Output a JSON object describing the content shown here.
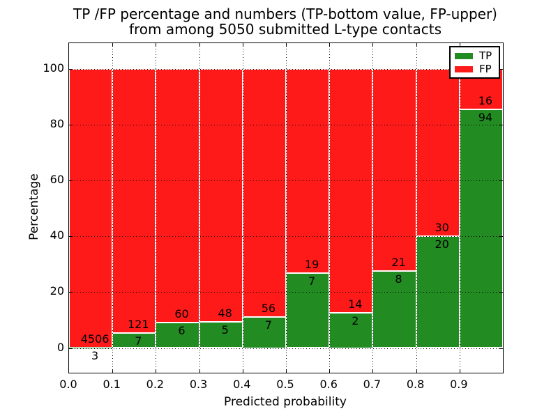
{
  "figure": {
    "title_line1": "TP /FP percentage and numbers (TP-bottom value, FP-upper)",
    "title_line2": "from among 5050 submitted L-type contacts",
    "xlabel": "Predicted probability",
    "ylabel": "Percentage"
  },
  "legend": {
    "entries": [
      {
        "label": "TP",
        "color": "#228b22"
      },
      {
        "label": "FP",
        "color": "#ff1a1a"
      }
    ]
  },
  "chart_data": {
    "type": "bar",
    "subtype": "stacked-100-percent-histogram",
    "title": "TP /FP percentage and numbers (TP-bottom value, FP-upper) from among 5050 submitted L-type contacts",
    "xlabel": "Predicted probability",
    "ylabel": "Percentage",
    "total_submitted": 5050,
    "bin_edges": [
      0.0,
      0.1,
      0.2,
      0.3,
      0.4,
      0.5,
      0.6,
      0.7,
      0.8,
      0.9,
      1.0
    ],
    "x_tick_labels": [
      "0.0",
      "0.1",
      "0.2",
      "0.3",
      "0.4",
      "0.5",
      "0.6",
      "0.7",
      "0.8",
      "0.9"
    ],
    "y_ticks": [
      0,
      20,
      40,
      60,
      80,
      100
    ],
    "xlim": [
      0.0,
      1.0
    ],
    "ylim": [
      -8.9,
      109.2
    ],
    "grid": {
      "style": "dotted",
      "drawn_above_bars": true
    },
    "legend_position": "upper-right",
    "series": [
      {
        "name": "TP",
        "color": "#228b22",
        "counts": [
          3,
          7,
          6,
          5,
          7,
          7,
          2,
          8,
          20,
          94
        ]
      },
      {
        "name": "FP",
        "color": "#ff1a1a",
        "counts": [
          4506,
          121,
          60,
          48,
          56,
          19,
          14,
          21,
          30,
          16
        ]
      }
    ],
    "tp_percent_per_bin": [
      0.07,
      5.47,
      9.09,
      9.43,
      11.11,
      26.92,
      12.5,
      27.59,
      40.0,
      85.45
    ]
  }
}
